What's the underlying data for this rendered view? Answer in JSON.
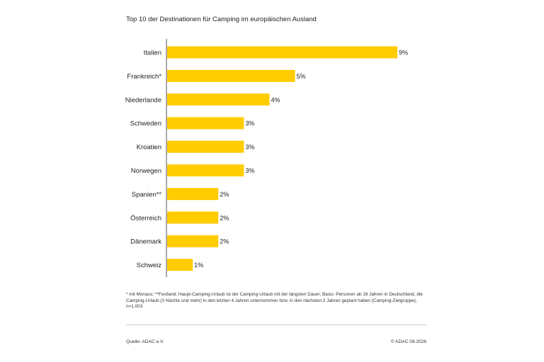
{
  "header": {
    "title": "Top 10 der Destinationen für Camping im europäischen Ausland"
  },
  "chart_data": {
    "type": "bar",
    "orientation": "horizontal",
    "categories": [
      "Italien",
      "Frankreich*",
      "Niederlande",
      "Schweden",
      "Kroatien",
      "Norwegen",
      "Spanien**",
      "Österreich",
      "Dänemark",
      "Schweiz"
    ],
    "values": [
      9,
      5,
      4,
      3,
      3,
      3,
      2,
      2,
      2,
      1
    ],
    "value_labels": [
      "9%",
      "5%",
      "4%",
      "3%",
      "3%",
      "3%",
      "2%",
      "2%",
      "2%",
      "1%"
    ],
    "unit": "%",
    "xlim": [
      0,
      9
    ],
    "bar_color": "#FFCC00",
    "axis_color": "#555555",
    "grid": false,
    "legend": "none"
  },
  "footnote": "* mit Monaco; **Festland; Haupt-Camping-Urlaub ist der Camping-Urlaub mit der längsten Dauer; Basis: Personen ab 16 Jahren in Deutschland, die Camping-Urlaub (3 Nächte und mehr) in den letzten 4 Jahren unternommen bzw. in den nächsten 2 Jahren geplant haben (Camping-Zielgruppe), n=1.003",
  "footer": {
    "source": "Quelle: ADAC e.V.",
    "copyright": "© ADAC 08.2026"
  }
}
